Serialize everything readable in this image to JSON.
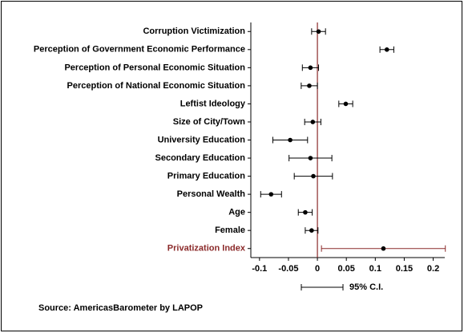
{
  "chart_data": {
    "type": "coefficient",
    "categories": [
      "Corruption Victimization",
      "Perception of Government Economic Performance",
      "Perception of Personal Economic Situation",
      "Perception of National Economic Situation",
      "Leftist Ideology",
      "Size of City/Town",
      "University Education",
      "Secondary Education",
      "Primary Education",
      "Personal Wealth",
      "Age",
      "Female",
      "Privatization Index"
    ],
    "values": [
      0.002,
      0.12,
      -0.012,
      -0.014,
      0.049,
      -0.008,
      -0.047,
      -0.012,
      -0.007,
      -0.08,
      -0.021,
      -0.01,
      0.114
    ],
    "errors": [
      0.012,
      0.012,
      0.014,
      0.014,
      0.012,
      0.014,
      0.03,
      0.037,
      0.033,
      0.018,
      0.012,
      0.011,
      0.107
    ],
    "color": "#000000",
    "highlight": 12,
    "highlight_color": "#8b2a2a",
    "refline": 0,
    "xlim": [
      -0.115,
      0.22
    ],
    "xticks": [
      -0.1,
      -0.05,
      0,
      0.05,
      0.1,
      0.15,
      0.2
    ],
    "legend_label": "95% C.I.",
    "source": "Source: AmericasBarometer by LAPOP"
  }
}
